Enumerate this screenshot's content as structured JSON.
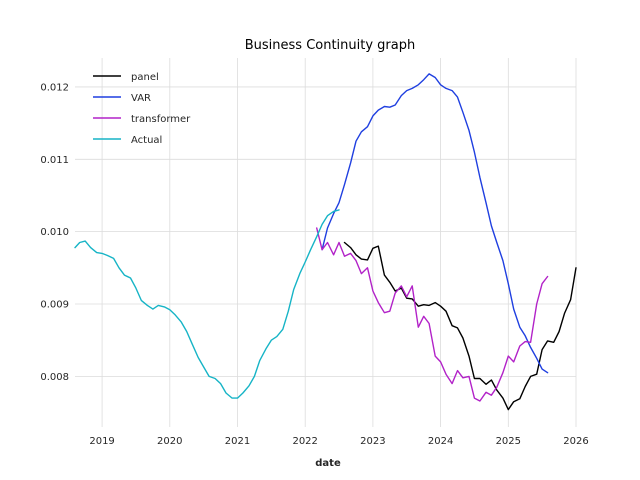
{
  "chart_data": {
    "type": "line",
    "title": "Business Continuity graph",
    "xlabel": "date",
    "ylabel": "",
    "xlim": [
      2018.6,
      2026.0
    ],
    "ylim": [
      0.0073,
      0.0124
    ],
    "x_ticks": [
      2019,
      2020,
      2021,
      2022,
      2023,
      2024,
      2025,
      2026
    ],
    "x_tick_labels": [
      "2019",
      "2020",
      "2021",
      "2022",
      "2023",
      "2024",
      "2025",
      "2026"
    ],
    "y_ticks": [
      0.008,
      0.009,
      0.01,
      0.011,
      0.012
    ],
    "y_tick_labels": [
      "0.008",
      "0.009",
      "0.010",
      "0.011",
      "0.012"
    ],
    "grid": true,
    "legend_position": "top-left",
    "series": [
      {
        "name": "panel",
        "color": "#000000",
        "x": [
          2022.58,
          2022.67,
          2022.75,
          2022.83,
          2022.92,
          2023.0,
          2023.08,
          2023.17,
          2023.25,
          2023.33,
          2023.42,
          2023.5,
          2023.58,
          2023.67,
          2023.75,
          2023.83,
          2023.92,
          2024.0,
          2024.08,
          2024.17,
          2024.25,
          2024.33,
          2024.42,
          2024.5,
          2024.58,
          2024.67,
          2024.75,
          2024.83,
          2024.92,
          2025.0,
          2025.08,
          2025.17,
          2025.25,
          2025.33,
          2025.42,
          2025.5,
          2025.58,
          2025.67,
          2025.75,
          2025.83,
          2025.92,
          2026.0
        ],
        "y": [
          0.00985,
          0.00978,
          0.00968,
          0.00962,
          0.00961,
          0.00977,
          0.0098,
          0.0094,
          0.0093,
          0.00918,
          0.00922,
          0.00908,
          0.00907,
          0.00897,
          0.00899,
          0.00898,
          0.00902,
          0.00897,
          0.0089,
          0.0087,
          0.00867,
          0.00853,
          0.00828,
          0.00797,
          0.00797,
          0.00789,
          0.00795,
          0.00781,
          0.0077,
          0.00754,
          0.00765,
          0.00769,
          0.00786,
          0.008,
          0.00803,
          0.00837,
          0.00849,
          0.00847,
          0.00862,
          0.00887,
          0.00906,
          0.0095
        ]
      },
      {
        "name": "VAR",
        "color": "#1f3fe0",
        "x": [
          2022.25,
          2022.33,
          2022.42,
          2022.5,
          2022.58,
          2022.67,
          2022.75,
          2022.83,
          2022.92,
          2023.0,
          2023.08,
          2023.17,
          2023.25,
          2023.33,
          2023.42,
          2023.5,
          2023.58,
          2023.67,
          2023.75,
          2023.83,
          2023.92,
          2024.0,
          2024.08,
          2024.17,
          2024.25,
          2024.33,
          2024.42,
          2024.5,
          2024.58,
          2024.67,
          2024.75,
          2024.83,
          2024.92,
          2025.0,
          2025.08,
          2025.17,
          2025.25,
          2025.33,
          2025.42,
          2025.5,
          2025.58
        ],
        "y": [
          0.00975,
          0.01005,
          0.01025,
          0.0104,
          0.01065,
          0.01095,
          0.01125,
          0.01138,
          0.01145,
          0.0116,
          0.01168,
          0.01173,
          0.01172,
          0.01175,
          0.01188,
          0.01195,
          0.01198,
          0.01203,
          0.0121,
          0.01218,
          0.01213,
          0.01203,
          0.01198,
          0.01195,
          0.01186,
          0.01165,
          0.0114,
          0.0111,
          0.01075,
          0.0104,
          0.01008,
          0.00985,
          0.0096,
          0.00928,
          0.00893,
          0.00868,
          0.00856,
          0.0084,
          0.00825,
          0.0081,
          0.00805
        ]
      },
      {
        "name": "transformer",
        "color": "#b222c8",
        "x": [
          2022.17,
          2022.25,
          2022.33,
          2022.42,
          2022.5,
          2022.58,
          2022.67,
          2022.75,
          2022.83,
          2022.92,
          2023.0,
          2023.08,
          2023.17,
          2023.25,
          2023.33,
          2023.42,
          2023.5,
          2023.58,
          2023.67,
          2023.75,
          2023.83,
          2023.92,
          2024.0,
          2024.08,
          2024.17,
          2024.25,
          2024.33,
          2024.42,
          2024.5,
          2024.58,
          2024.67,
          2024.75,
          2024.83,
          2024.92,
          2025.0,
          2025.08,
          2025.17,
          2025.25,
          2025.33,
          2025.42,
          2025.5,
          2025.58
        ],
        "y": [
          0.01005,
          0.00975,
          0.00985,
          0.00968,
          0.00985,
          0.00966,
          0.0097,
          0.0096,
          0.00942,
          0.0095,
          0.00918,
          0.00902,
          0.00888,
          0.0089,
          0.00915,
          0.00925,
          0.0091,
          0.00925,
          0.00868,
          0.00883,
          0.00873,
          0.00828,
          0.0082,
          0.00803,
          0.0079,
          0.00808,
          0.00798,
          0.008,
          0.0077,
          0.00766,
          0.00778,
          0.00774,
          0.00785,
          0.00805,
          0.00828,
          0.0082,
          0.00842,
          0.00848,
          0.00847,
          0.009,
          0.00928,
          0.00938
        ]
      },
      {
        "name": "Actual",
        "color": "#16b4c6",
        "x": [
          2018.6,
          2018.67,
          2018.75,
          2018.83,
          2018.92,
          2019.0,
          2019.08,
          2019.17,
          2019.25,
          2019.33,
          2019.42,
          2019.5,
          2019.58,
          2019.67,
          2019.75,
          2019.83,
          2019.92,
          2020.0,
          2020.08,
          2020.17,
          2020.25,
          2020.33,
          2020.42,
          2020.5,
          2020.58,
          2020.67,
          2020.75,
          2020.83,
          2020.92,
          2021.0,
          2021.08,
          2021.17,
          2021.25,
          2021.33,
          2021.42,
          2021.5,
          2021.58,
          2021.67,
          2021.75,
          2021.83,
          2021.92,
          2022.0,
          2022.08,
          2022.17,
          2022.25,
          2022.33,
          2022.42,
          2022.5
        ],
        "y": [
          0.00978,
          0.00985,
          0.00987,
          0.00978,
          0.00971,
          0.0097,
          0.00967,
          0.00963,
          0.0095,
          0.0094,
          0.00936,
          0.00922,
          0.00905,
          0.00898,
          0.00893,
          0.00898,
          0.00896,
          0.00892,
          0.00885,
          0.00875,
          0.00862,
          0.00845,
          0.00826,
          0.00813,
          0.008,
          0.00797,
          0.0079,
          0.00777,
          0.0077,
          0.0077,
          0.00777,
          0.00787,
          0.008,
          0.00822,
          0.00838,
          0.0085,
          0.00855,
          0.00865,
          0.0089,
          0.0092,
          0.00942,
          0.00958,
          0.00975,
          0.00993,
          0.0101,
          0.01022,
          0.01028,
          0.0103
        ]
      }
    ]
  }
}
